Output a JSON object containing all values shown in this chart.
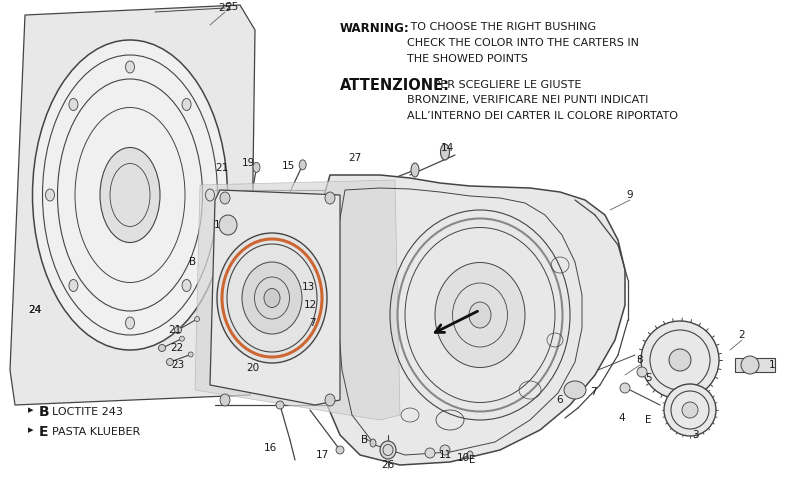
{
  "bg_color": "#ffffff",
  "fig_width": 8.0,
  "fig_height": 4.9,
  "warning_bold": "WARNING:",
  "warning_rest": " TO CHOOSE THE RIGHT BUSHING\nCHECK THE COLOR INTO THE CARTERS IN\nTHE SHOWED POINTS",
  "attenzione_bold": "ATTENZIONE:",
  "attenzione_rest": " PER SCEGLIERE LE GIUSTE\nBRONZINE, VERIFICARE NEI PUNTI INDICATI\nALL’INTERNO DEI CARTER IL COLORE RIPORTATO",
  "text_color": "#1a1a1a",
  "line_color": "#444444",
  "part_num_color": "#1a1a1a",
  "fill_light": "#e8e8e8",
  "fill_gray": "#cccccc",
  "orange_color": "#cc6633",
  "watermark_color": "#b0b0b0"
}
